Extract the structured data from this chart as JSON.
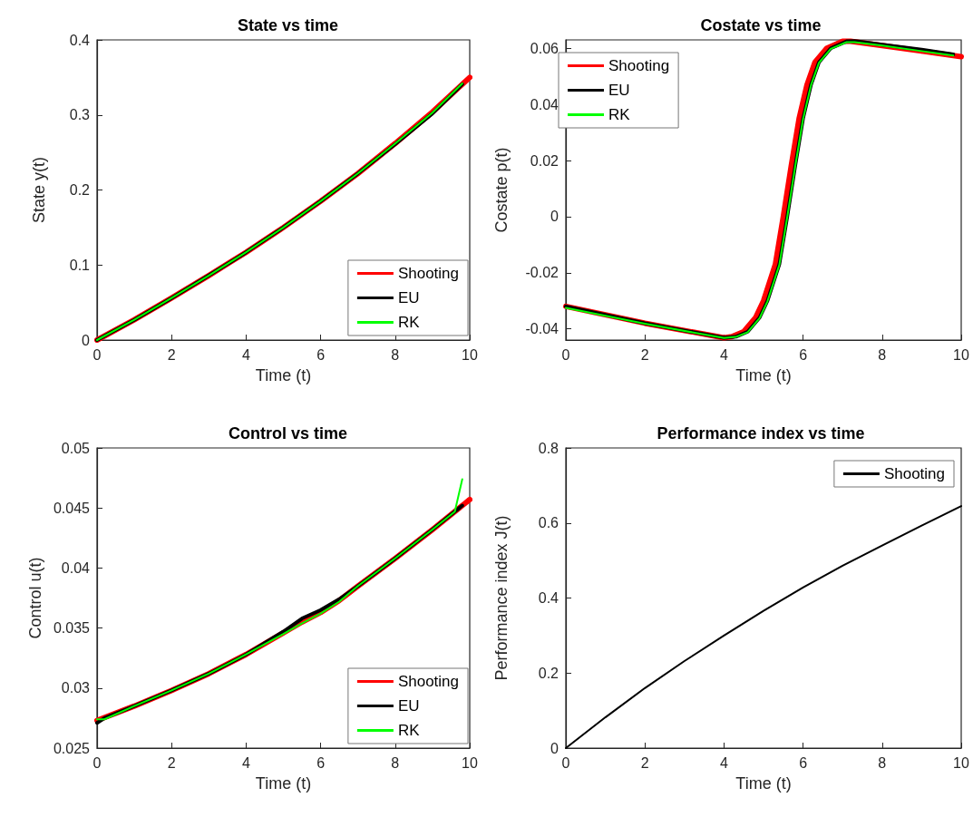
{
  "chart_data": [
    {
      "type": "line",
      "title": "State vs time",
      "xlabel": "Time (t)",
      "ylabel": "State y(t)",
      "xlim": [
        0,
        10
      ],
      "ylim": [
        0,
        0.4
      ],
      "xticks": [
        0,
        2,
        4,
        6,
        8,
        10
      ],
      "yticks": [
        0,
        0.1,
        0.2,
        0.3,
        0.4
      ],
      "legend": "bottom right",
      "marker": "none",
      "line_style": "solid",
      "grid": false,
      "series": [
        {
          "name": "Shooting",
          "color": "#ff0000",
          "x": [
            0,
            1,
            2,
            3,
            4,
            5,
            6,
            7,
            8,
            9,
            10
          ],
          "values": [
            0,
            0.027,
            0.056,
            0.086,
            0.117,
            0.15,
            0.185,
            0.222,
            0.262,
            0.304,
            0.35
          ]
        },
        {
          "name": "EU",
          "color": "#000000",
          "x": [
            0,
            1,
            2,
            3,
            4,
            5,
            6,
            7,
            8,
            9,
            9.8
          ],
          "values": [
            0,
            0.027,
            0.056,
            0.086,
            0.117,
            0.15,
            0.185,
            0.222,
            0.261,
            0.302,
            0.341
          ]
        },
        {
          "name": "RK",
          "color": "#00ff00",
          "x": [
            0,
            1,
            2,
            3,
            4,
            5,
            6,
            7,
            8,
            9,
            9.8
          ],
          "values": [
            0,
            0.027,
            0.056,
            0.086,
            0.117,
            0.15,
            0.185,
            0.222,
            0.262,
            0.303,
            0.342
          ]
        }
      ]
    },
    {
      "type": "line",
      "title": "Costate vs time",
      "xlabel": "Time (t)",
      "ylabel": "Costate p(t)",
      "xlim": [
        0,
        10
      ],
      "ylim": [
        -0.044,
        0.063
      ],
      "xticks": [
        0,
        2,
        4,
        6,
        8,
        10
      ],
      "yticks": [
        -0.04,
        -0.02,
        0,
        0.02,
        0.04,
        0.06
      ],
      "legend": "top left",
      "marker": "none",
      "line_style": "solid",
      "grid": false,
      "series": [
        {
          "name": "Shooting",
          "color": "#ff0000",
          "x": [
            0,
            2,
            4,
            4.2,
            4.5,
            4.8,
            5,
            5.3,
            5.5,
            5.7,
            5.9,
            6.1,
            6.3,
            6.6,
            7,
            7.2,
            8,
            9,
            10
          ],
          "values": [
            -0.032,
            -0.038,
            -0.0432,
            -0.0428,
            -0.041,
            -0.036,
            -0.03,
            -0.017,
            0,
            0.018,
            0.035,
            0.047,
            0.055,
            0.06,
            0.0625,
            0.0625,
            0.061,
            0.059,
            0.057
          ]
        },
        {
          "name": "EU",
          "color": "#000000",
          "x": [
            0,
            2,
            4,
            4.3,
            4.6,
            4.9,
            5.1,
            5.4,
            5.6,
            5.8,
            6,
            6.2,
            6.4,
            6.7,
            7.1,
            7.3,
            8,
            9,
            9.8
          ],
          "values": [
            -0.032,
            -0.038,
            -0.0432,
            -0.0428,
            -0.041,
            -0.036,
            -0.03,
            -0.017,
            0,
            0.018,
            0.035,
            0.047,
            0.055,
            0.06,
            0.0625,
            0.0626,
            0.0613,
            0.0595,
            0.0578
          ]
        },
        {
          "name": "RK",
          "color": "#00ff00",
          "x": [
            0,
            2,
            4,
            4.3,
            4.6,
            4.9,
            5.1,
            5.4,
            5.6,
            5.8,
            6,
            6.2,
            6.4,
            6.7,
            7.1,
            7.3,
            8,
            9,
            9.8
          ],
          "values": [
            -0.0325,
            -0.0382,
            -0.0433,
            -0.0429,
            -0.0412,
            -0.0362,
            -0.0302,
            -0.0172,
            -0.0002,
            0.0178,
            0.0348,
            0.0468,
            0.0548,
            0.0598,
            0.0622,
            0.0622,
            0.061,
            0.059,
            0.0574
          ]
        }
      ]
    },
    {
      "type": "line",
      "title": "Control vs time",
      "xlabel": "Time (t)",
      "ylabel": "Control u(t)",
      "xlim": [
        0,
        10
      ],
      "ylim": [
        0.025,
        0.05
      ],
      "xticks": [
        0,
        2,
        4,
        6,
        8,
        10
      ],
      "yticks": [
        0.025,
        0.03,
        0.035,
        0.04,
        0.045,
        0.05
      ],
      "legend": "bottom right",
      "marker": "none",
      "line_style": "solid",
      "grid": false,
      "series": [
        {
          "name": "Shooting",
          "color": "#ff0000",
          "x": [
            0,
            1,
            2,
            3,
            4,
            5,
            5.5,
            6,
            6.5,
            7,
            8,
            9,
            9.6,
            10
          ],
          "values": [
            0.0273,
            0.0285,
            0.0298,
            0.0312,
            0.0328,
            0.0346,
            0.0355,
            0.0363,
            0.0373,
            0.0385,
            0.0408,
            0.0432,
            0.0447,
            0.0457
          ]
        },
        {
          "name": "EU",
          "color": "#000000",
          "x": [
            0,
            0.2,
            1,
            2,
            3,
            4,
            5,
            5.5,
            6,
            6.5,
            7,
            8,
            9,
            9.6,
            9.8
          ],
          "values": [
            0.0271,
            0.0275,
            0.0285,
            0.0298,
            0.0312,
            0.0328,
            0.0347,
            0.0358,
            0.0365,
            0.0374,
            0.0385,
            0.0408,
            0.0432,
            0.0447,
            0.0452
          ]
        },
        {
          "name": "RK",
          "color": "#00ff00",
          "x": [
            0,
            0.2,
            1,
            2,
            3,
            4,
            5,
            5.5,
            6,
            6.5,
            7,
            8,
            9,
            9.6,
            9.8
          ],
          "values": [
            0.0274,
            0.0274,
            0.0285,
            0.0298,
            0.0312,
            0.0328,
            0.0345,
            0.0354,
            0.0362,
            0.0372,
            0.0385,
            0.0408,
            0.0432,
            0.0447,
            0.0474
          ]
        }
      ]
    },
    {
      "type": "line",
      "title": "Performance index vs time",
      "xlabel": "Time (t)",
      "ylabel": "Performance index J(t)",
      "xlim": [
        0,
        10
      ],
      "ylim": [
        0,
        0.8
      ],
      "xticks": [
        0,
        2,
        4,
        6,
        8,
        10
      ],
      "yticks": [
        0,
        0.2,
        0.4,
        0.6,
        0.8
      ],
      "legend": "top right",
      "marker": "none",
      "line_style": "solid",
      "grid": false,
      "series": [
        {
          "name": "Shooting",
          "color": "#000000",
          "x": [
            0,
            1,
            2,
            3,
            4,
            5,
            6,
            7,
            8,
            9,
            10
          ],
          "values": [
            0,
            0.082,
            0.16,
            0.232,
            0.3,
            0.366,
            0.428,
            0.486,
            0.54,
            0.593,
            0.645
          ]
        }
      ]
    }
  ]
}
